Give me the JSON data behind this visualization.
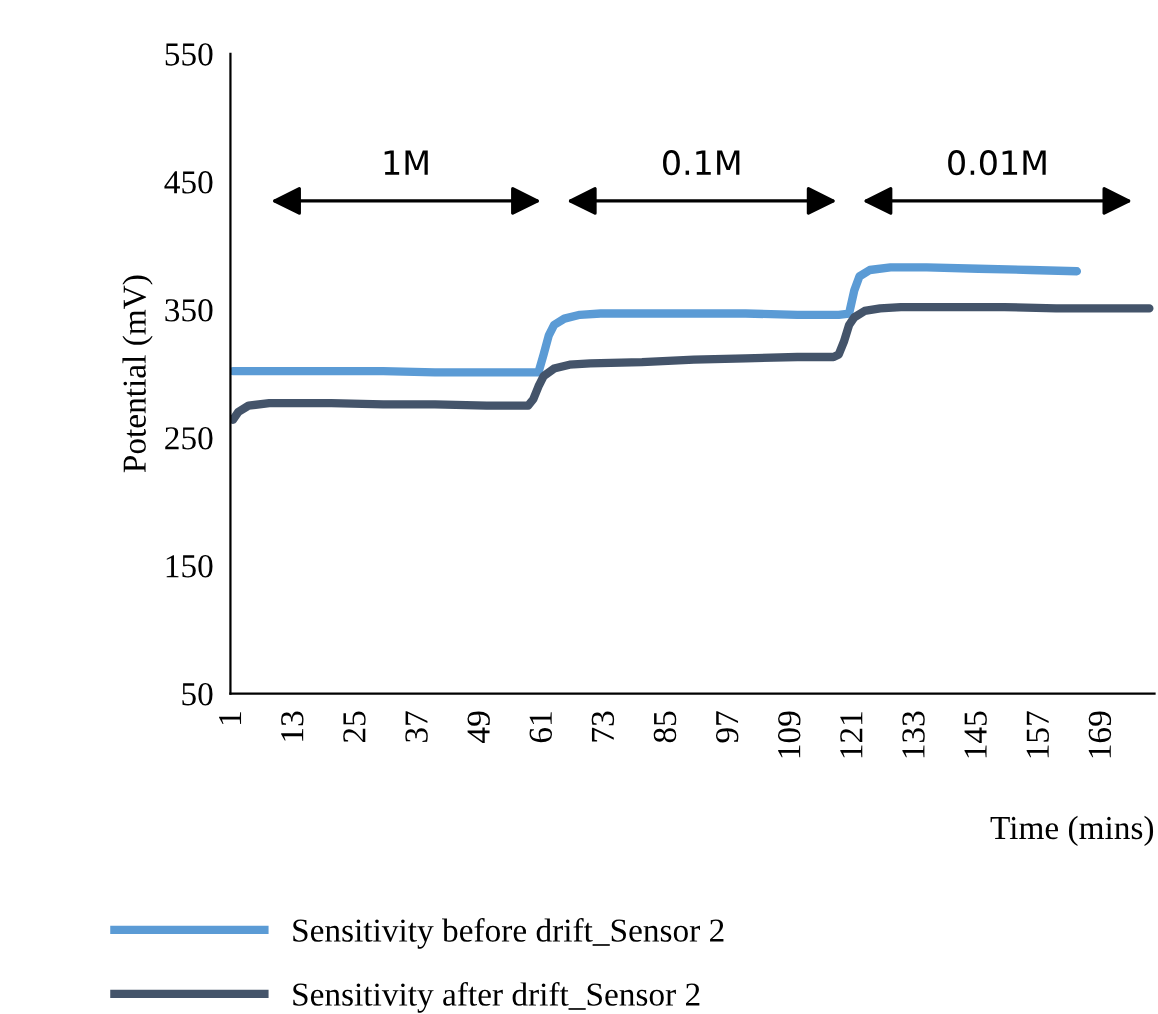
{
  "chart_data": {
    "type": "line",
    "xlabel": "Time (mins)",
    "ylabel": "Potential (mV)",
    "xlim": [
      0.5,
      179
    ],
    "xticks": [
      1,
      13,
      25,
      37,
      49,
      61,
      73,
      85,
      97,
      109,
      121,
      133,
      145,
      157,
      169
    ],
    "ylim": [
      50,
      550
    ],
    "yticks": [
      50,
      150,
      250,
      350,
      450,
      550
    ],
    "grid": false,
    "legend": "bottom left",
    "marker": "none",
    "line_style": "solid",
    "annotations": [
      "1M",
      "0.1M",
      "0.01M"
    ],
    "series": [
      {
        "name": "Sensitivity before drift_Sensor 2",
        "color": "#5b9bd5",
        "x": [
          1,
          10,
          20,
          30,
          40,
          50,
          58,
          60,
          61,
          62,
          63,
          65,
          68,
          72,
          80,
          90,
          100,
          110,
          118,
          120,
          121,
          122,
          124,
          128,
          135,
          145,
          155,
          164
        ],
        "values": [
          302,
          302,
          302,
          302,
          301,
          301,
          301,
          301,
          315,
          330,
          338,
          343,
          346,
          347,
          347,
          347,
          347,
          346,
          346,
          347,
          365,
          376,
          381,
          383,
          383,
          382,
          381,
          380
        ]
      },
      {
        "name": "Sensitivity after drift_Sensor 2",
        "color": "#44546a",
        "x": [
          1,
          2,
          4,
          8,
          20,
          30,
          40,
          50,
          56,
          58,
          59,
          60,
          61,
          63,
          66,
          70,
          80,
          90,
          100,
          110,
          117,
          118,
          119,
          120,
          121,
          123,
          126,
          130,
          140,
          150,
          160,
          170,
          178
        ],
        "values": [
          264,
          270,
          275,
          277,
          277,
          276,
          276,
          275,
          275,
          275,
          280,
          290,
          298,
          304,
          307,
          308,
          309,
          311,
          312,
          313,
          313,
          315,
          325,
          338,
          344,
          349,
          351,
          352,
          352,
          352,
          351,
          351,
          351
        ]
      }
    ]
  }
}
